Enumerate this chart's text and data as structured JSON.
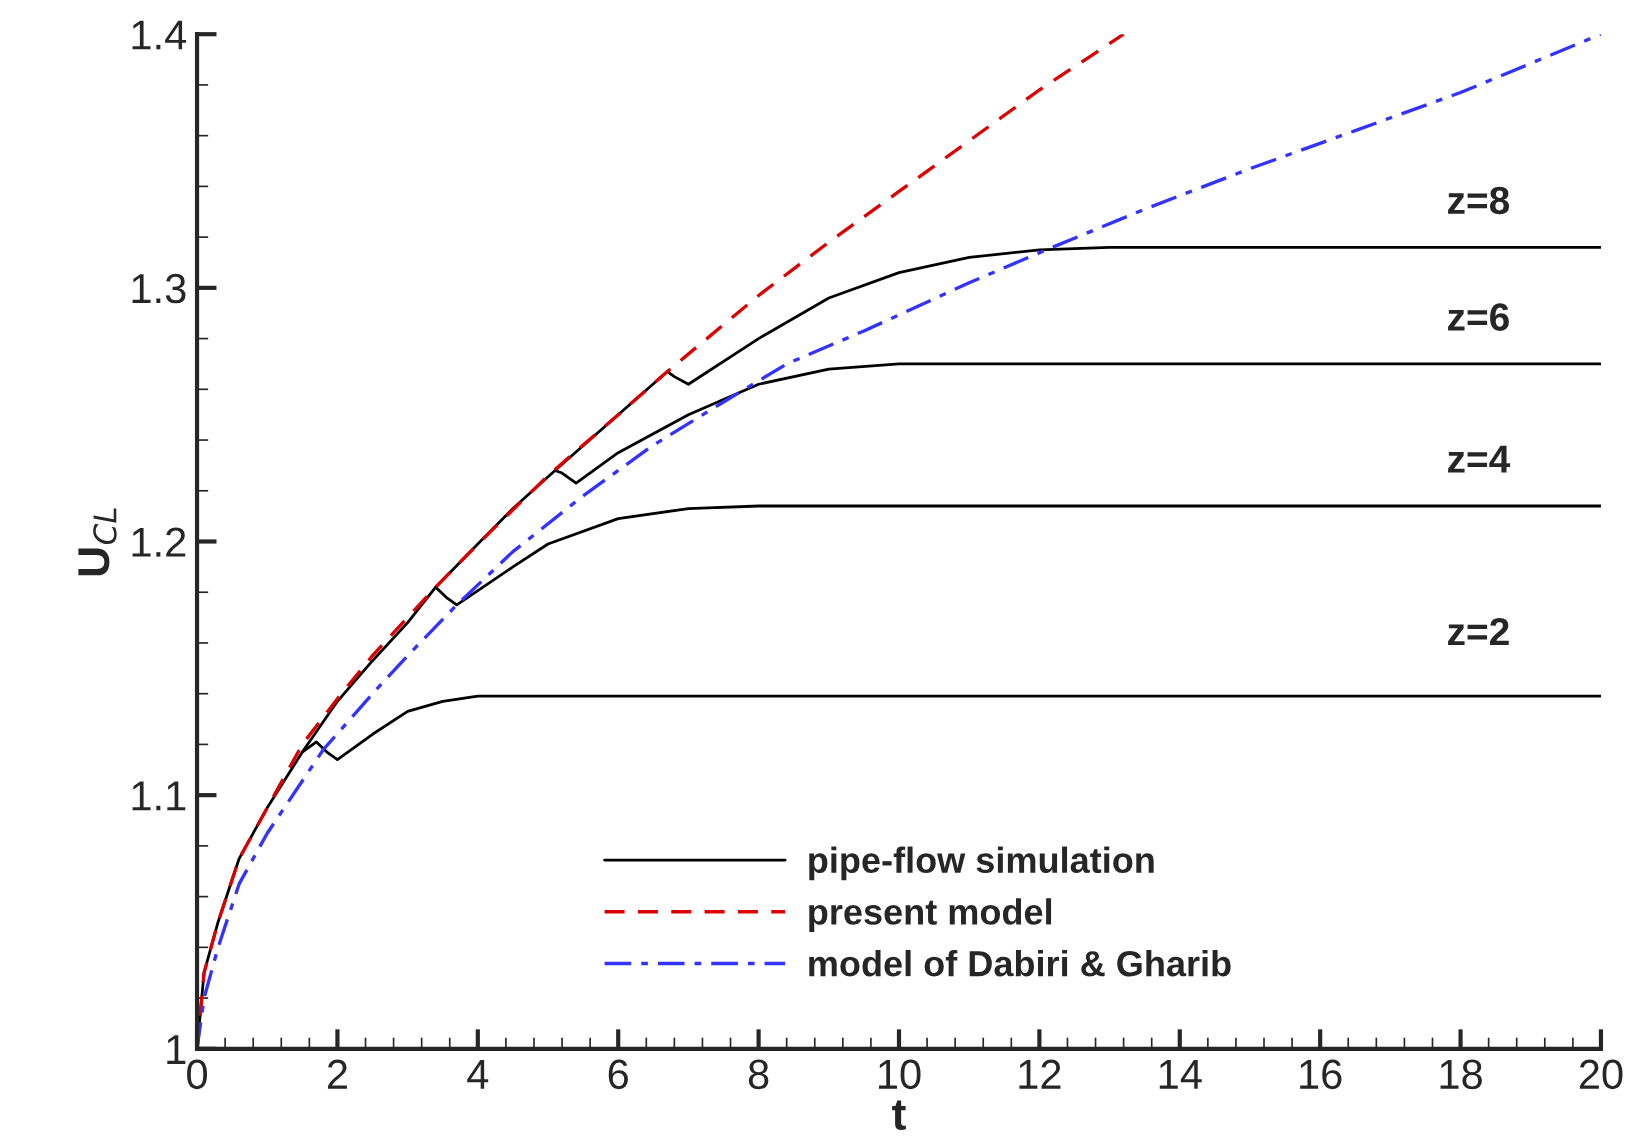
{
  "chart_data": {
    "type": "line",
    "xlabel": "t",
    "ylabel": "U$_{CL}$",
    "xlim": [
      0,
      20
    ],
    "xticks": [
      0,
      2,
      4,
      6,
      8,
      10,
      12,
      14,
      16,
      18,
      20
    ],
    "ylim": [
      1,
      1.4
    ],
    "yticks": [
      1,
      1.1,
      1.2,
      1.3,
      1.4
    ],
    "grid": false,
    "legend": "bottom right",
    "marker": "none",
    "series": [
      {
        "name": "pipe-flow simulation",
        "color": "#000000",
        "line_style": "solid",
        "x": [
          0,
          0.1,
          0.3,
          0.6,
          1,
          1.5,
          1.7,
          1.85,
          2.0,
          2.5,
          3,
          3.5,
          4,
          5,
          20
        ],
        "values": [
          1.0,
          1.03,
          1.05,
          1.075,
          1.095,
          1.117,
          1.121,
          1.117,
          1.114,
          1.124,
          1.133,
          1.137,
          1.139,
          1.139,
          1.139
        ]
      },
      {
        "color": "#000000",
        "line_style": "solid",
        "x": [
          1.5,
          2,
          2.5,
          3,
          3.4,
          3.55,
          3.7,
          4.5,
          5,
          6,
          7,
          8,
          20
        ],
        "values": [
          1.117,
          1.137,
          1.153,
          1.168,
          1.182,
          1.178,
          1.175,
          1.19,
          1.199,
          1.209,
          1.213,
          1.214,
          1.214
        ]
      },
      {
        "color": "#000000",
        "line_style": "solid",
        "x": [
          3.4,
          4,
          4.5,
          5.1,
          5.2,
          5.4,
          6,
          7,
          8,
          9,
          10,
          20
        ],
        "values": [
          1.182,
          1.199,
          1.213,
          1.228,
          1.227,
          1.223,
          1.235,
          1.25,
          1.262,
          1.268,
          1.27,
          1.27
        ]
      },
      {
        "color": "#000000",
        "line_style": "solid",
        "x": [
          5.1,
          6,
          6.7,
          6.8,
          7.0,
          8,
          9,
          10,
          11,
          12,
          13,
          20
        ],
        "values": [
          1.228,
          1.25,
          1.267,
          1.265,
          1.262,
          1.28,
          1.296,
          1.306,
          1.312,
          1.315,
          1.316,
          1.316
        ]
      },
      {
        "name": "present model",
        "color": "#dd0000",
        "line_style": "dashed",
        "x": [
          0,
          0.1,
          0.3,
          0.6,
          1,
          1.5,
          2,
          2.5,
          3,
          3.4,
          4,
          5,
          6,
          6.7,
          8,
          9,
          10,
          11,
          12,
          13.2
        ],
        "values": [
          1.0,
          1.03,
          1.05,
          1.075,
          1.095,
          1.12,
          1.138,
          1.155,
          1.17,
          1.182,
          1.199,
          1.226,
          1.25,
          1.267,
          1.297,
          1.318,
          1.338,
          1.358,
          1.378,
          1.4
        ]
      },
      {
        "name": "model of Dabiri & Gharib",
        "color": "#3333ff",
        "line_style": "dashdot",
        "x": [
          0,
          0.1,
          0.3,
          0.6,
          1,
          1.8,
          2.5,
          3,
          3.7,
          4.5,
          5.5,
          6.5,
          7.5,
          8.4,
          9.5,
          11,
          12.1,
          13.5,
          15,
          16.5,
          18,
          20
        ],
        "values": [
          1.0,
          1.02,
          1.04,
          1.065,
          1.085,
          1.118,
          1.14,
          1.155,
          1.175,
          1.196,
          1.218,
          1.238,
          1.255,
          1.27,
          1.283,
          1.302,
          1.315,
          1.331,
          1.347,
          1.362,
          1.377,
          1.4
        ]
      }
    ],
    "annotations": [
      "z=8",
      "z=6",
      "z=4",
      "z=2"
    ]
  }
}
